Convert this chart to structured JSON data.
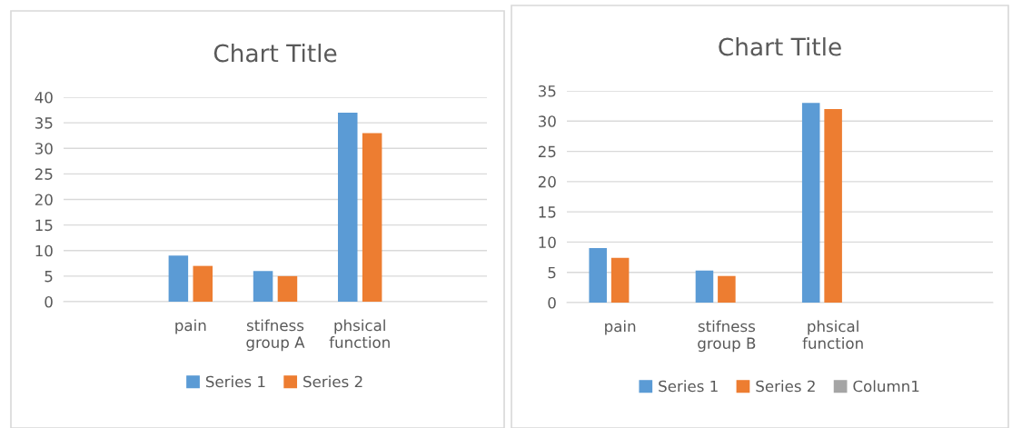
{
  "chart_data": [
    {
      "type": "bar",
      "title": "Chart Title",
      "categories": [
        null,
        "pain",
        "stifness\ngroup A",
        "phsical\nfunction",
        null
      ],
      "series": [
        {
          "name": "Series 1",
          "color": "#5b9bd5",
          "values": [
            null,
            9,
            6,
            37,
            null
          ]
        },
        {
          "name": "Series 2",
          "color": "#ed7d31",
          "values": [
            null,
            7,
            5,
            33,
            null
          ]
        }
      ],
      "ylim": [
        0,
        40
      ],
      "yticks": [
        0,
        5,
        10,
        15,
        20,
        25,
        30,
        35,
        40
      ],
      "grid": "y",
      "legend": "bottom"
    },
    {
      "type": "bar",
      "title": "Chart Title",
      "categories": [
        "pain",
        "stifness\ngroup B",
        "phsical\nfunction",
        null
      ],
      "series": [
        {
          "name": "Series 1",
          "color": "#5b9bd5",
          "values": [
            9,
            5.3,
            33,
            null
          ]
        },
        {
          "name": "Series 2",
          "color": "#ed7d31",
          "values": [
            7.4,
            4.4,
            32,
            null
          ]
        },
        {
          "name": "Column1",
          "color": "#a5a5a5",
          "values": [
            null,
            null,
            null,
            null
          ]
        }
      ],
      "ylim": [
        0,
        35
      ],
      "yticks": [
        0,
        5,
        10,
        15,
        20,
        25,
        30,
        35
      ],
      "grid": "y",
      "legend": "bottom"
    }
  ]
}
